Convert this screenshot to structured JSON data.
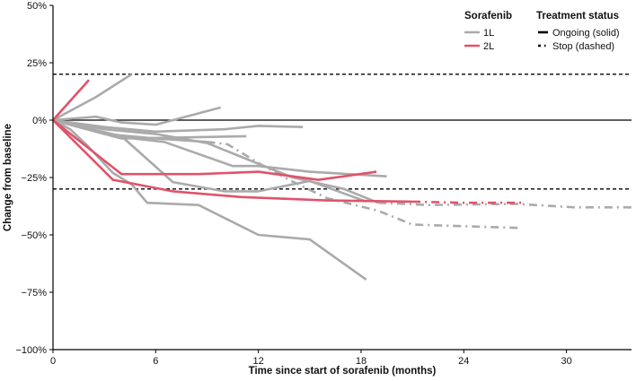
{
  "chart_data": {
    "type": "line",
    "title": "",
    "xlabel": "Time since start of sorafenib (months)",
    "ylabel": "Change from baseline",
    "xlim": [
      0,
      33.8
    ],
    "ylim": [
      -100,
      50
    ],
    "xticks": [
      0,
      6,
      12,
      18,
      24,
      30
    ],
    "xtick_labels": [
      "0",
      "6",
      "12",
      "18",
      "24",
      "30"
    ],
    "yticks": [
      50,
      25,
      0,
      -25,
      -50,
      -75,
      -100
    ],
    "ytick_labels": [
      "50%",
      "25%",
      "0%",
      "−25%",
      "−50%",
      "−75%",
      "−100%"
    ],
    "reference_lines": [
      {
        "y": 20,
        "style": "dashed"
      },
      {
        "y": 0,
        "style": "solid"
      },
      {
        "y": -30,
        "style": "dashed"
      }
    ],
    "legend": {
      "position": "top-right",
      "group_title": "Sorafenib",
      "status_title": "Treatment status",
      "groups": [
        {
          "label": "1L",
          "color": "#aaaaaa"
        },
        {
          "label": "2L",
          "color": "#e0536a"
        }
      ],
      "statuses": [
        {
          "label": "Ongoing (solid)",
          "style": "solid"
        },
        {
          "label": "Stop (dashed)",
          "style": "dashdot"
        }
      ]
    },
    "series": [
      {
        "name": "1L-a",
        "group": "1L",
        "segments": [
          {
            "style": "solid",
            "points": [
              [
                0,
                0
              ],
              [
                2.5,
                10
              ],
              [
                4.6,
                20
              ]
            ]
          }
        ]
      },
      {
        "name": "1L-b",
        "group": "1L",
        "segments": [
          {
            "style": "solid",
            "points": [
              [
                0,
                0
              ],
              [
                2.5,
                1.5
              ],
              [
                4,
                -1
              ],
              [
                6,
                -2
              ],
              [
                9.8,
                5.5
              ]
            ]
          }
        ]
      },
      {
        "name": "1L-c",
        "group": "1L",
        "segments": [
          {
            "style": "solid",
            "points": [
              [
                0,
                0
              ],
              [
                3,
                -3
              ],
              [
                6,
                -5
              ],
              [
                10,
                -4
              ],
              [
                12,
                -2.5
              ],
              [
                14.6,
                -3
              ]
            ]
          }
        ]
      },
      {
        "name": "1L-d",
        "group": "1L",
        "segments": [
          {
            "style": "solid",
            "points": [
              [
                0,
                0
              ],
              [
                4,
                -8
              ],
              [
                8,
                -7.5
              ],
              [
                11.3,
                -7
              ]
            ]
          }
        ]
      },
      {
        "name": "1L-e",
        "group": "1L",
        "segments": [
          {
            "style": "solid",
            "points": [
              [
                0,
                0
              ],
              [
                3.5,
                -7
              ],
              [
                6.5,
                -9.5
              ],
              [
                10.5,
                -20
              ],
              [
                12,
                -20
              ],
              [
                15,
                -22.5
              ],
              [
                19.5,
                -24.5
              ]
            ]
          }
        ]
      },
      {
        "name": "1L-f",
        "group": "1L",
        "segments": [
          {
            "style": "solid",
            "points": [
              [
                0,
                0
              ],
              [
                4,
                -7
              ],
              [
                7,
                -27
              ],
              [
                10,
                -31
              ],
              [
                12,
                -31
              ],
              [
                15,
                -26.5
              ],
              [
                18.3,
                -35.5
              ]
            ]
          }
        ]
      },
      {
        "name": "1L-g",
        "group": "1L",
        "segments": [
          {
            "style": "solid",
            "points": [
              [
                0,
                0
              ],
              [
                1,
                -4
              ],
              [
                2,
                -11
              ],
              [
                3.5,
                -23
              ],
              [
                4.6,
                -28
              ],
              [
                5.5,
                -36
              ],
              [
                8.5,
                -37
              ],
              [
                12,
                -50
              ],
              [
                15,
                -52
              ],
              [
                18.3,
                -69.5
              ]
            ]
          }
        ]
      },
      {
        "name": "1L-h",
        "group": "1L",
        "segments": [
          {
            "style": "solid",
            "points": [
              [
                0,
                0
              ],
              [
                3,
                -6
              ],
              [
                6,
                -8
              ],
              [
                9,
                -9.5
              ]
            ]
          },
          {
            "style": "dashdot",
            "points": [
              [
                9,
                -9.5
              ],
              [
                10.2,
                -10.5
              ],
              [
                12.3,
                -20
              ],
              [
                13.8,
                -26
              ],
              [
                16,
                -34
              ],
              [
                19,
                -39.5
              ],
              [
                21,
                -45.5
              ],
              [
                27.3,
                -47
              ]
            ]
          }
        ]
      },
      {
        "name": "1L-i",
        "group": "1L",
        "segments": [
          {
            "style": "solid",
            "points": [
              [
                0,
                0
              ],
              [
                3,
                -4
              ],
              [
                6,
                -6
              ],
              [
                9,
                -10
              ],
              [
                14,
                -25
              ],
              [
                17,
                -30
              ],
              [
                19,
                -36
              ]
            ]
          },
          {
            "style": "dashdot",
            "points": [
              [
                19,
                -36
              ],
              [
                22,
                -37
              ],
              [
                27,
                -36.5
              ],
              [
                30.5,
                -38
              ],
              [
                33.8,
                -38
              ]
            ]
          }
        ]
      },
      {
        "name": "2L-a",
        "group": "2L",
        "segments": [
          {
            "style": "solid",
            "points": [
              [
                0,
                0
              ],
              [
                2.1,
                17.5
              ]
            ]
          }
        ]
      },
      {
        "name": "2L-b",
        "group": "2L",
        "segments": [
          {
            "style": "solid",
            "points": [
              [
                0,
                0
              ],
              [
                4,
                -23.5
              ],
              [
                8.5,
                -23.5
              ],
              [
                12,
                -22.5
              ],
              [
                15.5,
                -26
              ],
              [
                18.9,
                -22.5
              ]
            ]
          }
        ]
      },
      {
        "name": "2L-c",
        "group": "2L",
        "segments": [
          {
            "style": "solid",
            "points": [
              [
                0,
                0
              ],
              [
                3.5,
                -26
              ],
              [
                7,
                -31
              ],
              [
                11,
                -33.5
              ],
              [
                16,
                -35
              ],
              [
                21,
                -35.5
              ]
            ]
          },
          {
            "style": "dashdot",
            "points": [
              [
                21,
                -35.5
              ],
              [
                24,
                -36
              ],
              [
                27.5,
                -36
              ]
            ]
          }
        ]
      }
    ]
  }
}
